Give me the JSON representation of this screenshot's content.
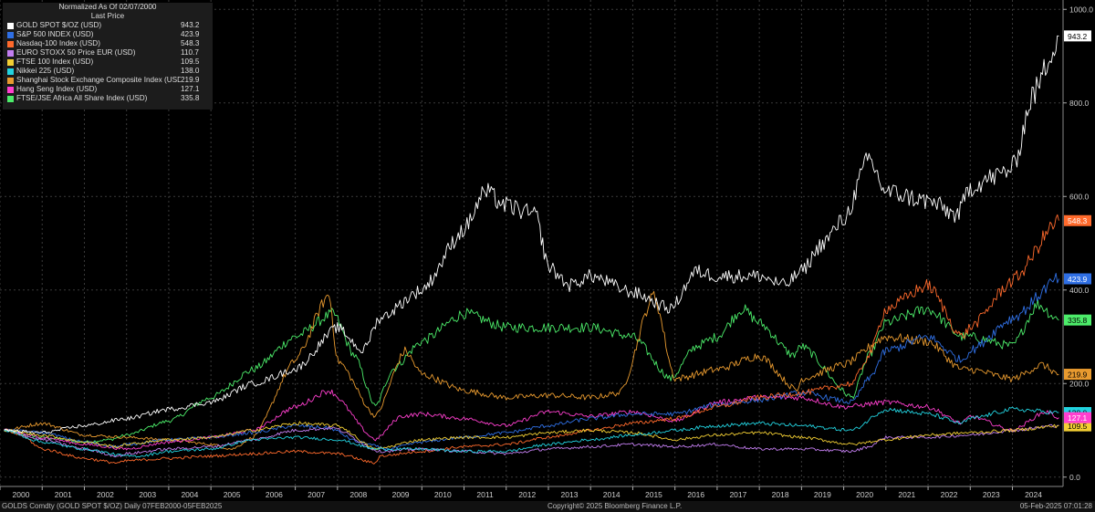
{
  "legend": {
    "header1": "Normalized As Of 02/07/2000",
    "header2": "Last Price"
  },
  "footer": {
    "left": "GOLDS Comdty (GOLD SPOT $/OZ) Daily 07FEB2000-05FEB2025",
    "center": "Copyright© 2025 Bloomberg Finance L.P.",
    "right": "05-Feb-2025 07:01:28"
  },
  "chart_data": {
    "type": "line",
    "title": "",
    "xlabel": "",
    "ylabel": "",
    "ylim": [
      -20,
      1020
    ],
    "x_ticks": [
      "2000",
      "2001",
      "2002",
      "2003",
      "2004",
      "2005",
      "2006",
      "2007",
      "2008",
      "2009",
      "2010",
      "2011",
      "2012",
      "2013",
      "2014",
      "2015",
      "2016",
      "2017",
      "2018",
      "2019",
      "2020",
      "2021",
      "2022",
      "2023",
      "2024"
    ],
    "y_ticks": [
      0,
      200,
      400,
      600,
      800,
      1000
    ],
    "y_tick_labels": [
      "0.0",
      "200.0",
      "400.0",
      "600.0",
      "800.0",
      "1000.0"
    ],
    "grid": true,
    "legend_position": "top-left",
    "background": "#000000",
    "series": [
      {
        "name": "GOLD SPOT $/OZ (USD)",
        "last": "943.2",
        "color": "#ffffff",
        "x": [
          2000.1,
          2001,
          2002,
          2003,
          2004,
          2005,
          2006,
          2007,
          2008,
          2008.6,
          2009,
          2010,
          2011,
          2011.5,
          2012,
          2012.7,
          2013,
          2013.5,
          2014,
          2015,
          2015.9,
          2016.5,
          2017,
          2018,
          2018.6,
          2019,
          2019.5,
          2020,
          2020.6,
          2021,
          2022,
          2022.7,
          2023,
          2023.5,
          2024,
          2024.5,
          2025.1
        ],
        "y": [
          100,
          95,
          110,
          125,
          145,
          160,
          200,
          230,
          320,
          270,
          340,
          400,
          530,
          610,
          580,
          560,
          450,
          410,
          430,
          395,
          360,
          440,
          430,
          430,
          410,
          440,
          500,
          550,
          680,
          610,
          590,
          560,
          620,
          640,
          660,
          820,
          943.2
        ]
      },
      {
        "name": "S&P 500 INDEX (USD)",
        "last": "423.9",
        "color": "#2f6fe4",
        "x": [
          2000.1,
          2001,
          2002,
          2002.8,
          2003,
          2004,
          2005,
          2006,
          2007,
          2007.8,
          2008.5,
          2009.2,
          2010,
          2011,
          2012,
          2013,
          2014,
          2015,
          2016,
          2017,
          2018,
          2019,
          2020.2,
          2020.6,
          2021,
          2022,
          2022.8,
          2023,
          2024,
          2025.1
        ],
        "y": [
          100,
          95,
          75,
          65,
          70,
          80,
          85,
          95,
          110,
          105,
          75,
          60,
          75,
          85,
          95,
          110,
          125,
          135,
          135,
          155,
          165,
          180,
          160,
          210,
          270,
          300,
          250,
          270,
          340,
          423.9
        ]
      },
      {
        "name": "Nasdaq-100 Index (USD)",
        "last": "548.3",
        "color": "#ff6a2c",
        "x": [
          2000.1,
          2000.5,
          2001,
          2002,
          2002.8,
          2003,
          2004,
          2005,
          2006,
          2007,
          2008,
          2008.9,
          2009,
          2010,
          2011,
          2012,
          2013,
          2014,
          2015,
          2016,
          2017,
          2018,
          2019,
          2020.2,
          2020.6,
          2021,
          2022,
          2022.8,
          2023,
          2024,
          2025.1
        ],
        "y": [
          100,
          90,
          60,
          40,
          30,
          35,
          40,
          45,
          50,
          55,
          50,
          30,
          45,
          55,
          65,
          70,
          85,
          100,
          115,
          125,
          150,
          170,
          180,
          200,
          260,
          360,
          410,
          300,
          320,
          420,
          548.3
        ]
      },
      {
        "name": "EURO STOXX 50 Price EUR (USD)",
        "last": "110.7",
        "color": "#c37ef0",
        "x": [
          2000.1,
          2001,
          2002,
          2002.8,
          2003,
          2004,
          2005,
          2006,
          2007,
          2007.9,
          2009,
          2010,
          2011,
          2012,
          2013,
          2014,
          2015,
          2016,
          2017,
          2018,
          2019,
          2020.2,
          2020.6,
          2021,
          2022,
          2023,
          2024,
          2025.1
        ],
        "y": [
          100,
          80,
          60,
          45,
          50,
          60,
          65,
          80,
          100,
          105,
          55,
          60,
          55,
          50,
          60,
          65,
          70,
          65,
          70,
          60,
          60,
          55,
          65,
          85,
          85,
          90,
          100,
          110.7
        ]
      },
      {
        "name": "FTSE 100 Index (USD)",
        "last": "109.5",
        "color": "#f3cf33",
        "x": [
          2000.1,
          2001,
          2002,
          2002.8,
          2003,
          2004,
          2005,
          2006,
          2007,
          2008,
          2008.9,
          2010,
          2011,
          2012,
          2013,
          2014,
          2015,
          2016,
          2017,
          2018,
          2019,
          2020.2,
          2021,
          2022,
          2023,
          2024,
          2025.1
        ],
        "y": [
          100,
          90,
          75,
          65,
          70,
          80,
          85,
          100,
          115,
          110,
          60,
          80,
          85,
          85,
          95,
          100,
          95,
          80,
          90,
          95,
          85,
          70,
          80,
          90,
          95,
          100,
          109.5
        ]
      },
      {
        "name": "Nikkei 225 (USD)",
        "last": "138.0",
        "color": "#22d3e0",
        "x": [
          2000.1,
          2001,
          2002,
          2003,
          2003.3,
          2004,
          2005,
          2006,
          2007,
          2008,
          2008.9,
          2010,
          2011,
          2012,
          2013,
          2014,
          2015,
          2016,
          2017,
          2018,
          2019,
          2020.2,
          2021,
          2022,
          2022.8,
          2023,
          2024,
          2025.1
        ],
        "y": [
          100,
          75,
          60,
          45,
          45,
          55,
          60,
          80,
          85,
          80,
          60,
          60,
          55,
          55,
          70,
          80,
          90,
          100,
          110,
          115,
          110,
          100,
          145,
          135,
          115,
          125,
          145,
          138
        ]
      },
      {
        "name": "Shanghai Stock Exchange Composite Index (USD)",
        "last": "219.9",
        "color": "#e89a2f",
        "x": [
          2000.1,
          2001,
          2002,
          2003,
          2004,
          2005,
          2005.5,
          2006,
          2007,
          2007.8,
          2008,
          2008.9,
          2009.6,
          2010,
          2011,
          2012,
          2013,
          2014,
          2014.7,
          2015.5,
          2016,
          2017,
          2018,
          2018.9,
          2019,
          2020,
          2021,
          2022,
          2022.8,
          2023,
          2024,
          2024.7,
          2025.1
        ],
        "y": [
          100,
          115,
          90,
          85,
          80,
          70,
          60,
          85,
          250,
          390,
          250,
          130,
          270,
          220,
          185,
          170,
          175,
          170,
          180,
          390,
          210,
          230,
          260,
          185,
          210,
          240,
          300,
          290,
          230,
          230,
          210,
          240,
          219.9
        ]
      },
      {
        "name": "Hang Seng Index (USD)",
        "last": "127.1",
        "color": "#ff3fcf",
        "x": [
          2000.1,
          2001,
          2002,
          2003,
          2004,
          2005,
          2006,
          2007,
          2007.8,
          2008.9,
          2009.5,
          2010,
          2011,
          2012,
          2013,
          2014,
          2015,
          2016,
          2017,
          2018,
          2019,
          2020,
          2021,
          2022,
          2022.8,
          2023,
          2024,
          2024.8,
          2025.1
        ],
        "y": [
          100,
          85,
          70,
          60,
          75,
          85,
          100,
          150,
          185,
          80,
          130,
          135,
          125,
          110,
          140,
          130,
          140,
          120,
          160,
          170,
          170,
          150,
          160,
          150,
          115,
          130,
          100,
          140,
          127.1
        ]
      },
      {
        "name": "FTSE/JSE Africa All Share Index (USD)",
        "last": "335.8",
        "color": "#4cec6a",
        "x": [
          2000.1,
          2001,
          2002,
          2002.6,
          2003,
          2004,
          2005,
          2006,
          2007,
          2007.9,
          2008.4,
          2008.9,
          2009.3,
          2010,
          2011,
          2012,
          2013,
          2014,
          2015,
          2015.9,
          2016.5,
          2017,
          2017.6,
          2018,
          2018.8,
          2019,
          2020.2,
          2020.6,
          2021,
          2022,
          2022.8,
          2023,
          2024,
          2024.6,
          2025.1
        ],
        "y": [
          100,
          85,
          75,
          80,
          90,
          120,
          170,
          230,
          300,
          350,
          260,
          150,
          230,
          290,
          350,
          320,
          320,
          320,
          300,
          210,
          280,
          300,
          360,
          330,
          260,
          280,
          170,
          260,
          330,
          360,
          300,
          300,
          280,
          370,
          335.8
        ]
      }
    ]
  }
}
